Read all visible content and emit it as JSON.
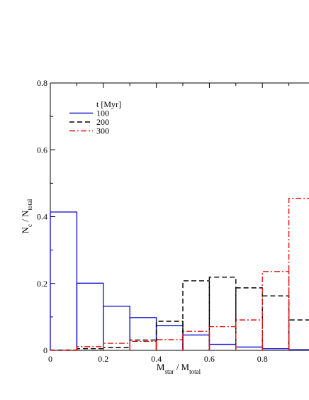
{
  "chart_data": {
    "type": "histogram-step",
    "title": "",
    "xlabel": {
      "main": "M",
      "sub1": "star",
      "mid": " / M",
      "sub2": "total"
    },
    "ylabel": {
      "main": "N",
      "sub1": "c",
      "mid": " / N",
      "sub2": "total"
    },
    "xlim": [
      0,
      1
    ],
    "ylim": [
      0,
      0.8
    ],
    "x_ticks": [
      0,
      0.2,
      0.4,
      0.6,
      0.8
    ],
    "x_tick_labels": [
      "0",
      "0.2",
      "0.4",
      "0.6",
      "0.8"
    ],
    "y_ticks": [
      0,
      0.2,
      0.4,
      0.6,
      0.8
    ],
    "y_tick_labels": [
      "0",
      "0.2",
      "0.4",
      "0.6",
      "0.8"
    ],
    "bin_edges": [
      0,
      0.1,
      0.2,
      0.3,
      0.4,
      0.5,
      0.6,
      0.7,
      0.8,
      0.9,
      1.0
    ],
    "legend": {
      "title": "t [Myr]",
      "placement": "top-left"
    },
    "grid": false,
    "series": [
      {
        "name": "100",
        "color": "#1a1acc",
        "dash": "solid",
        "values": [
          0.414,
          0.201,
          0.132,
          0.098,
          0.074,
          0.046,
          0.018,
          0.01,
          0.005,
          0.002
        ]
      },
      {
        "name": "200",
        "color": "#000000",
        "dash": "dashed",
        "values": [
          0.001,
          0.005,
          0.009,
          0.031,
          0.087,
          0.208,
          0.219,
          0.187,
          0.163,
          0.091
        ]
      },
      {
        "name": "300",
        "color": "#e01010",
        "dash": "dashdot",
        "values": [
          0.0,
          0.011,
          0.021,
          0.027,
          0.032,
          0.057,
          0.071,
          0.091,
          0.236,
          0.455
        ]
      }
    ]
  }
}
